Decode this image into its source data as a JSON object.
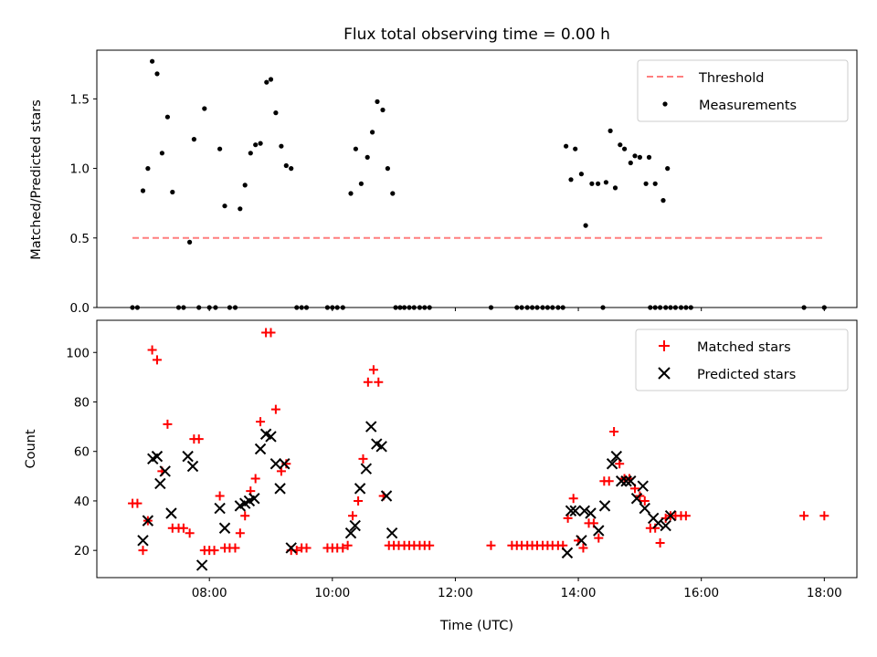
{
  "figure": {
    "title": "Flux total observing time = 0.00 h",
    "xlabel": "Time (UTC)",
    "x_ticks": [
      "08:00",
      "10:00",
      "12:00",
      "14:00",
      "16:00",
      "18:00"
    ]
  },
  "chart_data": [
    {
      "type": "scatter",
      "panel": "top",
      "ylabel": "Matched/Predicted stars",
      "xlim_hours": [
        6.17,
        18.53
      ],
      "ylim": [
        0,
        1.85
      ],
      "y_ticks": [
        "0.0",
        "0.5",
        "1.0",
        "1.5"
      ],
      "legend_position": "upper right",
      "series": [
        {
          "name": "Threshold",
          "style": "dashed-line",
          "color": "#ff7f7f",
          "points": [
            [
              6.75,
              0.5
            ],
            [
              18.0,
              0.5
            ]
          ]
        },
        {
          "name": "Measurements",
          "style": "dot",
          "color": "#000000",
          "points": [
            [
              6.75,
              0
            ],
            [
              6.83,
              0
            ],
            [
              6.92,
              0.84
            ],
            [
              7.0,
              1.0
            ],
            [
              7.07,
              1.77
            ],
            [
              7.15,
              1.68
            ],
            [
              7.23,
              1.11
            ],
            [
              7.32,
              1.37
            ],
            [
              7.4,
              0.83
            ],
            [
              7.5,
              0
            ],
            [
              7.58,
              0
            ],
            [
              7.68,
              0.47
            ],
            [
              7.75,
              1.21
            ],
            [
              7.92,
              1.43
            ],
            [
              7.83,
              0
            ],
            [
              8.0,
              0
            ],
            [
              8.1,
              0
            ],
            [
              8.17,
              1.14
            ],
            [
              8.25,
              0.73
            ],
            [
              8.33,
              0
            ],
            [
              8.42,
              0
            ],
            [
              8.5,
              0.71
            ],
            [
              8.58,
              0.88
            ],
            [
              8.67,
              1.11
            ],
            [
              8.75,
              1.17
            ],
            [
              8.83,
              1.18
            ],
            [
              8.93,
              1.62
            ],
            [
              9.0,
              1.64
            ],
            [
              9.08,
              1.4
            ],
            [
              9.17,
              1.16
            ],
            [
              9.25,
              1.02
            ],
            [
              9.33,
              1.0
            ],
            [
              9.42,
              0
            ],
            [
              9.5,
              0
            ],
            [
              9.58,
              0
            ],
            [
              9.92,
              0
            ],
            [
              10.0,
              0
            ],
            [
              10.08,
              0
            ],
            [
              10.17,
              0
            ],
            [
              10.3,
              0.82
            ],
            [
              10.38,
              1.14
            ],
            [
              10.47,
              0.89
            ],
            [
              10.57,
              1.08
            ],
            [
              10.65,
              1.26
            ],
            [
              10.73,
              1.48
            ],
            [
              10.82,
              1.42
            ],
            [
              10.9,
              1.0
            ],
            [
              10.98,
              0.82
            ],
            [
              11.03,
              0
            ],
            [
              11.1,
              0
            ],
            [
              11.17,
              0
            ],
            [
              11.25,
              0
            ],
            [
              11.33,
              0
            ],
            [
              11.42,
              0
            ],
            [
              11.5,
              0
            ],
            [
              11.58,
              0
            ],
            [
              12.58,
              0
            ],
            [
              13.0,
              0
            ],
            [
              13.08,
              0
            ],
            [
              13.17,
              0
            ],
            [
              13.25,
              0
            ],
            [
              13.33,
              0
            ],
            [
              13.42,
              0
            ],
            [
              13.5,
              0
            ],
            [
              13.58,
              0
            ],
            [
              13.67,
              0
            ],
            [
              13.75,
              0
            ],
            [
              13.8,
              1.16
            ],
            [
              13.88,
              0.92
            ],
            [
              13.95,
              1.14
            ],
            [
              14.05,
              0.96
            ],
            [
              14.12,
              0.59
            ],
            [
              14.22,
              0.89
            ],
            [
              14.32,
              0.89
            ],
            [
              14.4,
              0
            ],
            [
              14.45,
              0.9
            ],
            [
              14.52,
              1.27
            ],
            [
              14.6,
              0.86
            ],
            [
              14.68,
              1.17
            ],
            [
              14.75,
              1.14
            ],
            [
              14.85,
              1.04
            ],
            [
              14.92,
              1.09
            ],
            [
              15.0,
              1.08
            ],
            [
              15.1,
              0.89
            ],
            [
              15.15,
              1.08
            ],
            [
              15.25,
              0.89
            ],
            [
              15.38,
              0.77
            ],
            [
              15.45,
              1.0
            ],
            [
              15.17,
              0
            ],
            [
              15.25,
              0
            ],
            [
              15.33,
              0
            ],
            [
              15.42,
              0
            ],
            [
              15.5,
              0
            ],
            [
              15.58,
              0
            ],
            [
              15.67,
              0
            ],
            [
              15.75,
              0
            ],
            [
              15.83,
              0
            ],
            [
              17.67,
              0
            ],
            [
              18.0,
              0
            ]
          ]
        }
      ]
    },
    {
      "type": "scatter",
      "panel": "bottom",
      "ylabel": "Count",
      "xlim_hours": [
        6.17,
        18.53
      ],
      "ylim": [
        9,
        113
      ],
      "y_ticks": [
        "20",
        "40",
        "60",
        "80",
        "100"
      ],
      "legend_position": "upper right",
      "series": [
        {
          "name": "Matched stars",
          "marker": "plus",
          "color": "#ff0000",
          "points": [
            [
              6.75,
              39
            ],
            [
              6.83,
              39
            ],
            [
              6.92,
              20
            ],
            [
              7.0,
              32
            ],
            [
              7.07,
              101
            ],
            [
              7.15,
              97
            ],
            [
              7.23,
              52
            ],
            [
              7.32,
              71
            ],
            [
              7.4,
              29
            ],
            [
              7.5,
              29
            ],
            [
              7.58,
              29
            ],
            [
              7.68,
              27
            ],
            [
              7.75,
              65
            ],
            [
              7.83,
              65
            ],
            [
              7.92,
              20
            ],
            [
              8.0,
              20
            ],
            [
              8.08,
              20
            ],
            [
              8.17,
              42
            ],
            [
              8.25,
              21
            ],
            [
              8.33,
              21
            ],
            [
              8.42,
              21
            ],
            [
              8.5,
              27
            ],
            [
              8.58,
              34
            ],
            [
              8.67,
              44
            ],
            [
              8.75,
              49
            ],
            [
              8.83,
              72
            ],
            [
              8.92,
              108
            ],
            [
              9.0,
              108
            ],
            [
              9.08,
              77
            ],
            [
              9.17,
              52
            ],
            [
              9.25,
              55
            ],
            [
              9.33,
              20
            ],
            [
              9.42,
              20
            ],
            [
              9.5,
              21
            ],
            [
              9.58,
              21
            ],
            [
              9.92,
              21
            ],
            [
              10.0,
              21
            ],
            [
              10.08,
              21
            ],
            [
              10.17,
              21
            ],
            [
              10.25,
              22
            ],
            [
              10.33,
              34
            ],
            [
              10.42,
              40
            ],
            [
              10.5,
              57
            ],
            [
              10.58,
              88
            ],
            [
              10.67,
              93
            ],
            [
              10.75,
              88
            ],
            [
              10.83,
              42
            ],
            [
              10.92,
              22
            ],
            [
              11.0,
              22
            ],
            [
              11.08,
              22
            ],
            [
              11.17,
              22
            ],
            [
              11.25,
              22
            ],
            [
              11.33,
              22
            ],
            [
              11.42,
              22
            ],
            [
              11.5,
              22
            ],
            [
              11.58,
              22
            ],
            [
              12.58,
              22
            ],
            [
              12.92,
              22
            ],
            [
              13.0,
              22
            ],
            [
              13.08,
              22
            ],
            [
              13.17,
              22
            ],
            [
              13.25,
              22
            ],
            [
              13.33,
              22
            ],
            [
              13.42,
              22
            ],
            [
              13.5,
              22
            ],
            [
              13.58,
              22
            ],
            [
              13.67,
              22
            ],
            [
              13.75,
              22
            ],
            [
              13.83,
              33
            ],
            [
              13.92,
              41
            ],
            [
              14.0,
              24
            ],
            [
              14.08,
              21
            ],
            [
              14.17,
              31
            ],
            [
              14.25,
              31
            ],
            [
              14.33,
              25
            ],
            [
              14.42,
              48
            ],
            [
              14.5,
              48
            ],
            [
              14.58,
              68
            ],
            [
              14.67,
              55
            ],
            [
              14.75,
              49
            ],
            [
              14.83,
              49
            ],
            [
              14.92,
              45
            ],
            [
              15.0,
              42
            ],
            [
              15.08,
              40
            ],
            [
              15.17,
              29
            ],
            [
              15.25,
              29
            ],
            [
              15.33,
              23
            ],
            [
              15.42,
              33
            ],
            [
              15.5,
              34
            ],
            [
              15.58,
              34
            ],
            [
              15.67,
              34
            ],
            [
              15.75,
              34
            ],
            [
              17.67,
              34
            ],
            [
              18.0,
              34
            ]
          ]
        },
        {
          "name": "Predicted stars",
          "marker": "x",
          "color": "#000000",
          "points": [
            [
              6.92,
              24
            ],
            [
              7.0,
              32
            ],
            [
              7.08,
              57
            ],
            [
              7.15,
              58
            ],
            [
              7.2,
              47
            ],
            [
              7.28,
              52
            ],
            [
              7.38,
              35
            ],
            [
              7.65,
              58
            ],
            [
              7.73,
              54
            ],
            [
              7.88,
              14
            ],
            [
              8.17,
              37
            ],
            [
              8.25,
              29
            ],
            [
              8.5,
              38
            ],
            [
              8.58,
              39
            ],
            [
              8.65,
              40
            ],
            [
              8.73,
              41
            ],
            [
              8.83,
              61
            ],
            [
              8.92,
              67
            ],
            [
              9.0,
              66
            ],
            [
              9.08,
              55
            ],
            [
              9.15,
              45
            ],
            [
              9.22,
              55
            ],
            [
              9.33,
              21
            ],
            [
              10.3,
              27
            ],
            [
              10.37,
              30
            ],
            [
              10.45,
              45
            ],
            [
              10.55,
              53
            ],
            [
              10.63,
              70
            ],
            [
              10.72,
              63
            ],
            [
              10.8,
              62
            ],
            [
              10.88,
              42
            ],
            [
              10.97,
              27
            ],
            [
              13.82,
              19
            ],
            [
              13.88,
              36
            ],
            [
              13.95,
              36
            ],
            [
              14.05,
              24
            ],
            [
              14.1,
              36
            ],
            [
              14.2,
              35
            ],
            [
              14.33,
              28
            ],
            [
              14.43,
              38
            ],
            [
              14.55,
              55
            ],
            [
              14.62,
              58
            ],
            [
              14.7,
              48
            ],
            [
              14.78,
              48
            ],
            [
              14.85,
              48
            ],
            [
              14.95,
              41
            ],
            [
              15.05,
              46
            ],
            [
              15.08,
              37
            ],
            [
              15.22,
              33
            ],
            [
              15.3,
              31
            ],
            [
              15.42,
              30
            ],
            [
              15.5,
              34
            ]
          ]
        }
      ]
    }
  ]
}
